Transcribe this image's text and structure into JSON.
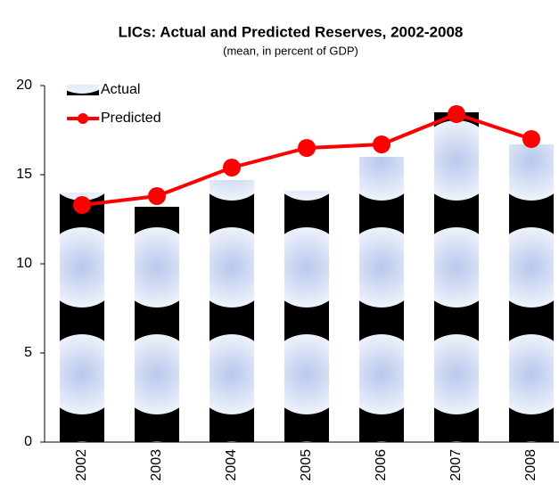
{
  "chart_data": {
    "type": "combo",
    "title": "LICs: Actual and Predicted Reserves, 2002-2008",
    "subtitle": "(mean, in percent of GDP)",
    "categories": [
      "2002",
      "2003",
      "2004",
      "2005",
      "2006",
      "2007",
      "2008"
    ],
    "series": [
      {
        "name": "Actual",
        "type": "bar",
        "color": "#000000",
        "values": [
          14.0,
          13.2,
          14.7,
          14.1,
          16.0,
          18.5,
          16.7
        ]
      },
      {
        "name": "Predicted",
        "type": "line",
        "color": "#ff0000",
        "values": [
          13.3,
          13.8,
          15.4,
          16.5,
          16.7,
          18.4,
          17.0
        ]
      }
    ],
    "ylim": [
      0,
      20
    ],
    "yticks": [
      0,
      5,
      10,
      15,
      20
    ],
    "grid": false,
    "legend": "upper left"
  }
}
